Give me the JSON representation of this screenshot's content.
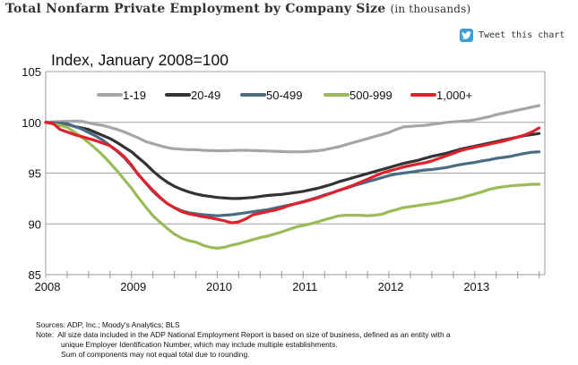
{
  "header": {
    "title": "Total Nonfarm Private Employment by Company Size",
    "subtitle": "(in thousands)",
    "tweet_label": "Tweet this chart",
    "tweet_icon": "twitter-bird-icon"
  },
  "chart_data": {
    "type": "line",
    "title": "Index, January 2008=100",
    "xlabel": "",
    "ylabel": "",
    "ylim": [
      85,
      105
    ],
    "yticks": [
      "85",
      "90",
      "95",
      "100",
      "105"
    ],
    "ytick_values": [
      85,
      90,
      95,
      100,
      105
    ],
    "grid": true,
    "x_start": "2008-01",
    "x_frequency": "monthly",
    "xticks": [
      "2008",
      "2009",
      "2010",
      "2011",
      "2012",
      "2013"
    ],
    "legend_position": "top-center",
    "series": [
      {
        "name": "1-19",
        "color": "#a6a6a6",
        "values": [
          100,
          100.05,
          100.08,
          100.1,
          100.12,
          100.1,
          99.95,
          99.8,
          99.7,
          99.5,
          99.3,
          99.05,
          98.75,
          98.45,
          98.1,
          97.9,
          97.7,
          97.5,
          97.4,
          97.35,
          97.3,
          97.3,
          97.25,
          97.22,
          97.2,
          97.2,
          97.22,
          97.25,
          97.25,
          97.22,
          97.2,
          97.18,
          97.15,
          97.12,
          97.1,
          97.1,
          97.1,
          97.15,
          97.2,
          97.3,
          97.45,
          97.6,
          97.8,
          98.0,
          98.2,
          98.4,
          98.6,
          98.8,
          99.0,
          99.3,
          99.55,
          99.6,
          99.65,
          99.7,
          99.8,
          99.9,
          100.0,
          100.05,
          100.1,
          100.15,
          100.25,
          100.4,
          100.55,
          100.75,
          100.9,
          101.05,
          101.2,
          101.35,
          101.5,
          101.65
        ]
      },
      {
        "name": "20-49",
        "color": "#333333",
        "values": [
          100,
          99.95,
          99.9,
          99.85,
          99.6,
          99.45,
          99.3,
          99.0,
          98.7,
          98.4,
          98.0,
          97.55,
          97.1,
          96.5,
          95.9,
          95.2,
          94.6,
          94.1,
          93.7,
          93.4,
          93.15,
          92.95,
          92.8,
          92.7,
          92.6,
          92.55,
          92.5,
          92.5,
          92.55,
          92.6,
          92.7,
          92.8,
          92.85,
          92.9,
          93.0,
          93.1,
          93.2,
          93.35,
          93.5,
          93.7,
          93.9,
          94.15,
          94.35,
          94.55,
          94.75,
          94.95,
          95.15,
          95.35,
          95.55,
          95.75,
          95.95,
          96.1,
          96.25,
          96.45,
          96.65,
          96.8,
          96.95,
          97.15,
          97.35,
          97.5,
          97.65,
          97.8,
          97.95,
          98.1,
          98.25,
          98.4,
          98.55,
          98.7,
          98.8,
          98.9
        ]
      },
      {
        "name": "50-499",
        "color": "#4a6b84",
        "values": [
          100,
          99.95,
          99.9,
          99.8,
          99.6,
          99.35,
          99.0,
          98.65,
          98.25,
          97.7,
          97.15,
          96.5,
          95.7,
          94.85,
          94.0,
          93.2,
          92.55,
          92.0,
          91.6,
          91.3,
          91.1,
          91.0,
          90.9,
          90.85,
          90.8,
          90.85,
          90.9,
          91.0,
          91.1,
          91.2,
          91.3,
          91.4,
          91.55,
          91.7,
          91.85,
          92.0,
          92.2,
          92.4,
          92.6,
          92.85,
          93.05,
          93.3,
          93.5,
          93.75,
          93.95,
          94.15,
          94.35,
          94.55,
          94.75,
          94.9,
          95.0,
          95.1,
          95.2,
          95.3,
          95.35,
          95.45,
          95.55,
          95.7,
          95.85,
          95.95,
          96.05,
          96.2,
          96.3,
          96.45,
          96.55,
          96.65,
          96.8,
          96.95,
          97.05,
          97.1
        ]
      },
      {
        "name": "500-999",
        "color": "#9bbb59",
        "values": [
          100,
          99.85,
          99.7,
          99.5,
          99.05,
          98.55,
          98.0,
          97.4,
          96.75,
          96.0,
          95.2,
          94.35,
          93.5,
          92.55,
          91.65,
          90.8,
          90.15,
          89.55,
          89.0,
          88.6,
          88.35,
          88.2,
          87.9,
          87.7,
          87.6,
          87.7,
          87.9,
          88.05,
          88.25,
          88.45,
          88.65,
          88.8,
          89.0,
          89.2,
          89.45,
          89.7,
          89.85,
          90.0,
          90.2,
          90.4,
          90.6,
          90.8,
          90.85,
          90.85,
          90.85,
          90.8,
          90.85,
          90.95,
          91.2,
          91.4,
          91.6,
          91.7,
          91.8,
          91.9,
          92.0,
          92.1,
          92.25,
          92.4,
          92.55,
          92.75,
          92.95,
          93.15,
          93.4,
          93.55,
          93.65,
          93.75,
          93.8,
          93.85,
          93.9,
          93.9
        ]
      },
      {
        "name": "1,000+",
        "color": "#e0202a",
        "values": [
          100,
          99.9,
          99.3,
          99.05,
          98.8,
          98.6,
          98.4,
          98.2,
          97.95,
          97.7,
          97.2,
          96.6,
          95.8,
          94.8,
          94.05,
          93.3,
          92.6,
          92.0,
          91.6,
          91.2,
          91.0,
          90.85,
          90.7,
          90.6,
          90.45,
          90.3,
          90.1,
          90.2,
          90.5,
          90.9,
          91.05,
          91.2,
          91.35,
          91.55,
          91.8,
          92.0,
          92.15,
          92.35,
          92.55,
          92.8,
          93.05,
          93.3,
          93.55,
          93.8,
          94.1,
          94.4,
          94.7,
          95.0,
          95.2,
          95.4,
          95.6,
          95.75,
          95.9,
          96.0,
          96.2,
          96.45,
          96.7,
          96.95,
          97.2,
          97.4,
          97.55,
          97.7,
          97.85,
          98.0,
          98.15,
          98.35,
          98.55,
          98.75,
          99.05,
          99.45
        ]
      }
    ]
  },
  "notes": {
    "sources": "Sources: ADP, Inc.; Moody's Analytics; BLS",
    "note_line1": "Note:  All size data included in the ADP National Employment Report is based on size of business, defined as an entity with a",
    "note_line2": "unique Employer Identification Number, which may include multiple establishments.",
    "note_line3": "Sum of components may not equal total due to rounding."
  }
}
